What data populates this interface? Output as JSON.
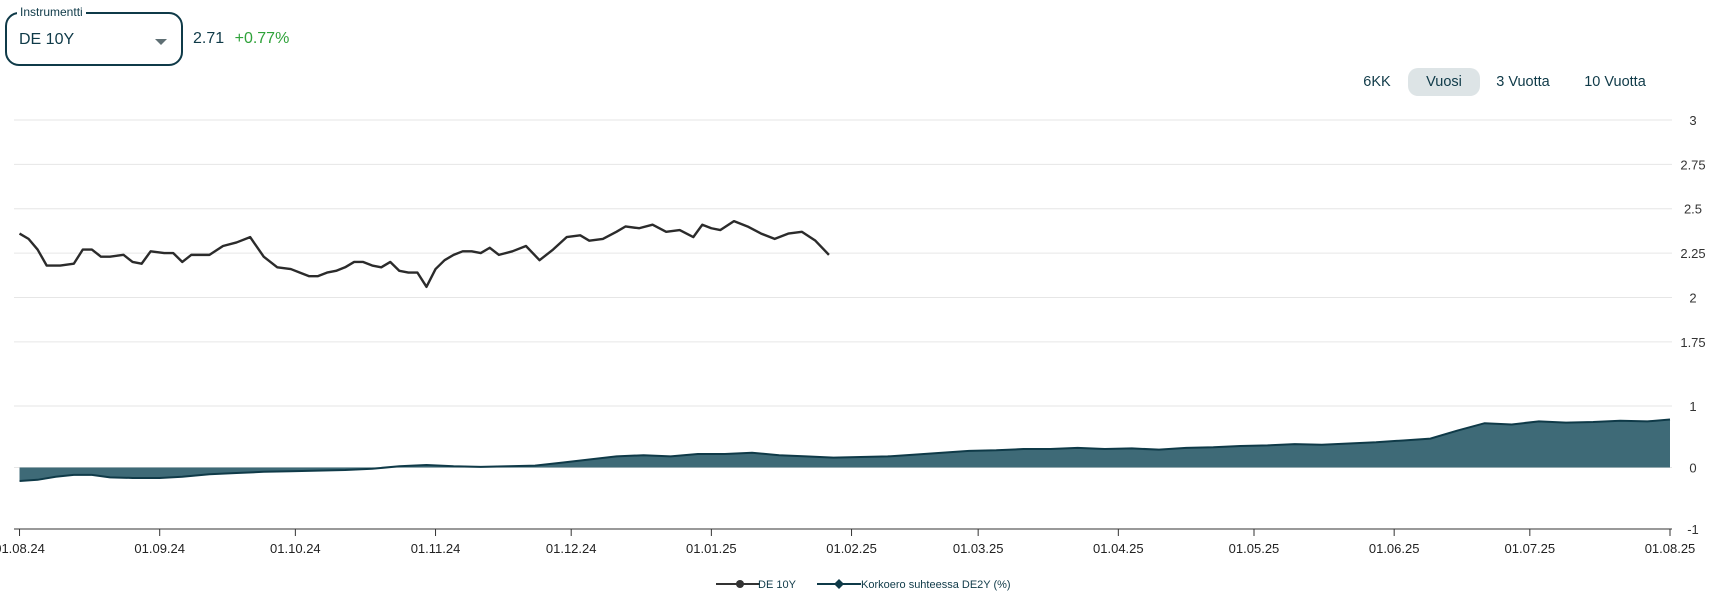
{
  "instrument_selector": {
    "legend": "Instrumentti",
    "selected": "DE 10Y"
  },
  "quote": {
    "price": "2.71",
    "change": "+0.77%"
  },
  "range_tabs": [
    {
      "label": "6KK",
      "active": false
    },
    {
      "label": "Vuosi",
      "active": true
    },
    {
      "label": "3 Vuotta",
      "active": false
    },
    {
      "label": "10 Vuotta",
      "active": false
    }
  ],
  "colors": {
    "line": "#2b2b2b",
    "area": "#3e6a77",
    "area_stroke": "#0f3a48",
    "change_positive": "#2fa23a"
  },
  "chart_data": [
    {
      "type": "line",
      "y_ticks": [
        "3",
        "2.75",
        "2.5",
        "2.25",
        "2",
        "1.75"
      ],
      "ylim": [
        1.625,
        3.0
      ],
      "x_ticks": [
        "01.08.24",
        "01.09.24",
        "01.10.24",
        "01.11.24",
        "01.12.24",
        "01.01.25",
        "01.02.25",
        "01.03.25",
        "01.04.25",
        "01.05.25",
        "01.06.25",
        "01.07.25",
        "01.08.25"
      ],
      "x_range": [
        "2024-07-31",
        "2025-08-01"
      ],
      "series": [
        {
          "name": "DE 10Y",
          "points": [
            [
              "2024-08-01",
              2.36
            ],
            [
              "2024-08-03",
              2.33
            ],
            [
              "2024-08-05",
              2.27
            ],
            [
              "2024-08-07",
              2.18
            ],
            [
              "2024-08-10",
              2.18
            ],
            [
              "2024-08-13",
              2.19
            ],
            [
              "2024-08-15",
              2.27
            ],
            [
              "2024-08-17",
              2.27
            ],
            [
              "2024-08-19",
              2.23
            ],
            [
              "2024-08-21",
              2.23
            ],
            [
              "2024-08-24",
              2.24
            ],
            [
              "2024-08-26",
              2.2
            ],
            [
              "2024-08-28",
              2.19
            ],
            [
              "2024-08-30",
              2.26
            ],
            [
              "2024-09-02",
              2.25
            ],
            [
              "2024-09-04",
              2.25
            ],
            [
              "2024-09-06",
              2.2
            ],
            [
              "2024-09-08",
              2.24
            ],
            [
              "2024-09-10",
              2.24
            ],
            [
              "2024-09-12",
              2.24
            ],
            [
              "2024-09-15",
              2.29
            ],
            [
              "2024-09-18",
              2.31
            ],
            [
              "2024-09-21",
              2.34
            ],
            [
              "2024-09-24",
              2.23
            ],
            [
              "2024-09-27",
              2.17
            ],
            [
              "2024-09-30",
              2.16
            ],
            [
              "2024-10-02",
              2.14
            ],
            [
              "2024-10-04",
              2.12
            ],
            [
              "2024-10-06",
              2.12
            ],
            [
              "2024-10-08",
              2.14
            ],
            [
              "2024-10-10",
              2.15
            ],
            [
              "2024-10-12",
              2.17
            ],
            [
              "2024-10-14",
              2.2
            ],
            [
              "2024-10-16",
              2.2
            ],
            [
              "2024-10-18",
              2.18
            ],
            [
              "2024-10-20",
              2.17
            ],
            [
              "2024-10-22",
              2.2
            ],
            [
              "2024-10-24",
              2.15
            ],
            [
              "2024-10-26",
              2.14
            ],
            [
              "2024-10-28",
              2.14
            ],
            [
              "2024-10-30",
              2.06
            ],
            [
              "2024-11-01",
              2.16
            ],
            [
              "2024-11-03",
              2.21
            ],
            [
              "2024-11-05",
              2.24
            ],
            [
              "2024-11-07",
              2.26
            ],
            [
              "2024-11-09",
              2.26
            ],
            [
              "2024-11-11",
              2.25
            ],
            [
              "2024-11-13",
              2.28
            ],
            [
              "2024-11-15",
              2.24
            ],
            [
              "2024-11-18",
              2.26
            ],
            [
              "2024-11-21",
              2.29
            ],
            [
              "2024-11-24",
              2.21
            ],
            [
              "2024-11-27",
              2.27
            ],
            [
              "2024-11-30",
              2.34
            ],
            [
              "2024-12-03",
              2.35
            ],
            [
              "2024-12-05",
              2.32
            ],
            [
              "2024-12-08",
              2.33
            ],
            [
              "2024-12-11",
              2.37
            ],
            [
              "2024-12-13",
              2.4
            ],
            [
              "2024-12-16",
              2.39
            ],
            [
              "2024-12-19",
              2.41
            ],
            [
              "2024-12-22",
              2.37
            ],
            [
              "2024-12-25",
              2.38
            ],
            [
              "2024-12-28",
              2.34
            ],
            [
              "2024-12-30",
              2.41
            ],
            [
              "2025-01-01",
              2.39
            ],
            [
              "2025-01-03",
              2.38
            ],
            [
              "2025-01-06",
              2.43
            ],
            [
              "2025-01-09",
              2.4
            ],
            [
              "2025-01-12",
              2.36
            ],
            [
              "2025-01-15",
              2.33
            ],
            [
              "2025-01-18",
              2.36
            ],
            [
              "2025-01-21",
              2.37
            ],
            [
              "2025-01-24",
              2.32
            ],
            [
              "2025-01-27",
              2.24
            ]
          ]
        },
        {
          "name": "Korkoero suhteessa DE2Y (%)",
          "points": []
        }
      ]
    },
    {
      "type": "area",
      "y_ticks": [
        "1",
        "0",
        "-1"
      ],
      "ylim": [
        -1,
        1
      ],
      "series": [
        {
          "name": "Korkoero suhteessa DE2Y (%)",
          "points": [
            [
              "2024-08-01",
              -0.22
            ],
            [
              "2024-08-05",
              -0.2
            ],
            [
              "2024-08-09",
              -0.15
            ],
            [
              "2024-08-13",
              -0.12
            ],
            [
              "2024-08-17",
              -0.12
            ],
            [
              "2024-08-21",
              -0.16
            ],
            [
              "2024-08-26",
              -0.17
            ],
            [
              "2024-09-01",
              -0.17
            ],
            [
              "2024-09-06",
              -0.15
            ],
            [
              "2024-09-12",
              -0.11
            ],
            [
              "2024-09-18",
              -0.09
            ],
            [
              "2024-09-24",
              -0.07
            ],
            [
              "2024-09-30",
              -0.06
            ],
            [
              "2024-10-06",
              -0.05
            ],
            [
              "2024-10-12",
              -0.04
            ],
            [
              "2024-10-18",
              -0.02
            ],
            [
              "2024-10-24",
              0.02
            ],
            [
              "2024-10-30",
              0.04
            ],
            [
              "2024-11-05",
              0.02
            ],
            [
              "2024-11-11",
              0.01
            ],
            [
              "2024-11-17",
              0.02
            ],
            [
              "2024-11-23",
              0.03
            ],
            [
              "2024-11-29",
              0.08
            ],
            [
              "2024-12-05",
              0.13
            ],
            [
              "2024-12-11",
              0.18
            ],
            [
              "2024-12-17",
              0.2
            ],
            [
              "2024-12-23",
              0.18
            ],
            [
              "2024-12-29",
              0.22
            ],
            [
              "2025-01-04",
              0.22
            ],
            [
              "2025-01-10",
              0.24
            ],
            [
              "2025-01-16",
              0.2
            ],
            [
              "2025-01-22",
              0.18
            ],
            [
              "2025-01-28",
              0.16
            ],
            [
              "2025-02-03",
              0.17
            ],
            [
              "2025-02-09",
              0.18
            ],
            [
              "2025-02-15",
              0.21
            ],
            [
              "2025-02-21",
              0.24
            ],
            [
              "2025-02-27",
              0.27
            ],
            [
              "2025-03-05",
              0.28
            ],
            [
              "2025-03-11",
              0.3
            ],
            [
              "2025-03-17",
              0.3
            ],
            [
              "2025-03-23",
              0.32
            ],
            [
              "2025-03-29",
              0.3
            ],
            [
              "2025-04-04",
              0.31
            ],
            [
              "2025-04-10",
              0.29
            ],
            [
              "2025-04-16",
              0.32
            ],
            [
              "2025-04-22",
              0.33
            ],
            [
              "2025-04-28",
              0.35
            ],
            [
              "2025-05-04",
              0.36
            ],
            [
              "2025-05-10",
              0.38
            ],
            [
              "2025-05-16",
              0.37
            ],
            [
              "2025-05-22",
              0.39
            ],
            [
              "2025-05-28",
              0.41
            ],
            [
              "2025-06-03",
              0.44
            ],
            [
              "2025-06-09",
              0.47
            ],
            [
              "2025-06-15",
              0.6
            ],
            [
              "2025-06-21",
              0.72
            ],
            [
              "2025-06-27",
              0.7
            ],
            [
              "2025-07-03",
              0.75
            ],
            [
              "2025-07-09",
              0.73
            ],
            [
              "2025-07-15",
              0.74
            ],
            [
              "2025-07-21",
              0.76
            ],
            [
              "2025-07-27",
              0.75
            ],
            [
              "2025-08-01",
              0.78
            ]
          ]
        }
      ]
    }
  ],
  "legend": [
    "DE 10Y",
    "Korkoero suhteessa DE2Y (%)"
  ]
}
